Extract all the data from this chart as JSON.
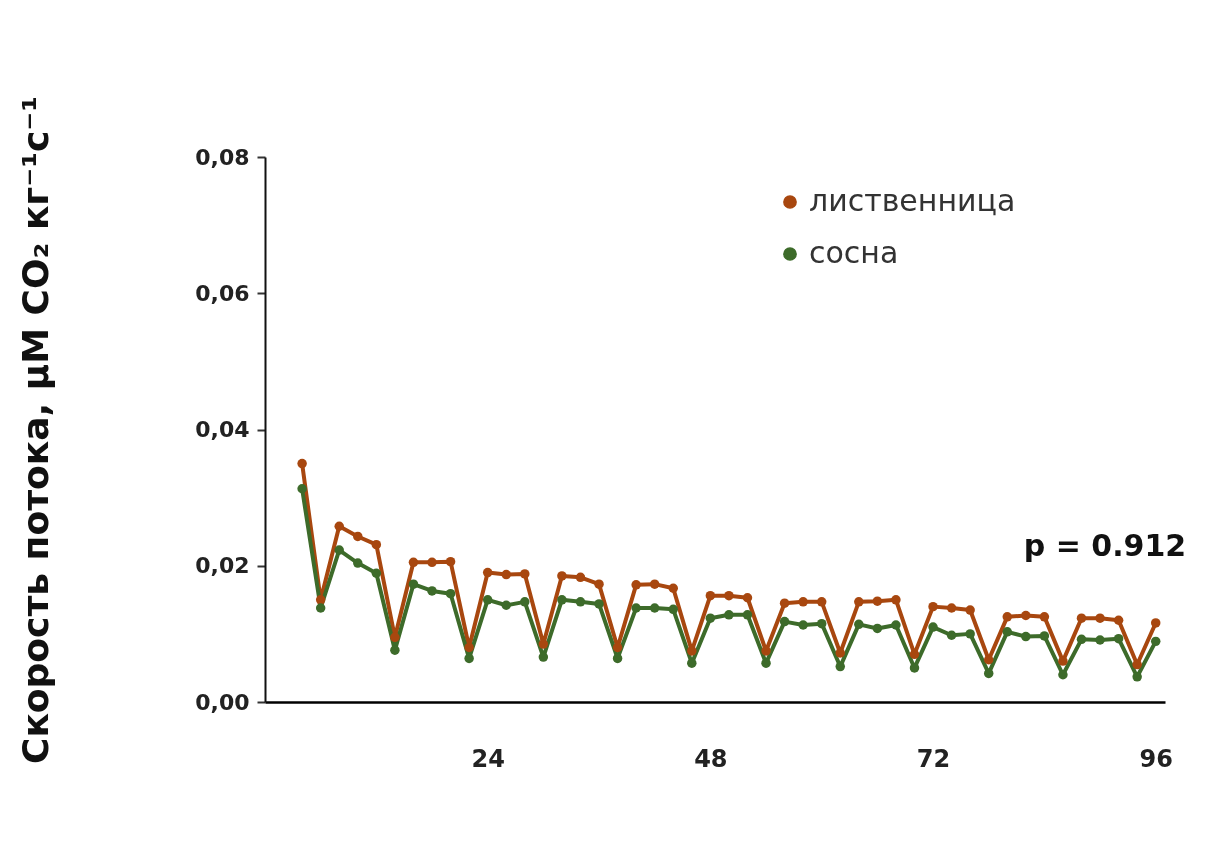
{
  "chart_data": {
    "type": "line",
    "ylabel": "Скорость потока, µM CO₂ кг⁻¹с⁻¹",
    "x": [
      4,
      6,
      8,
      10,
      12,
      14,
      16,
      18,
      20,
      22,
      24,
      26,
      28,
      30,
      32,
      34,
      36,
      38,
      40,
      42,
      44,
      46,
      48,
      50,
      52,
      54,
      56,
      58,
      60,
      62,
      64,
      66,
      68,
      70,
      72,
      74,
      76,
      78,
      80,
      82,
      84,
      86,
      88,
      90,
      92,
      94,
      96
    ],
    "series": [
      {
        "name": "лиственница",
        "color": "#a8470f",
        "values": [
          0.035,
          0.015,
          0.0258,
          0.0243,
          0.0231,
          0.0095,
          0.0205,
          0.0205,
          0.0206,
          0.008,
          0.019,
          0.0187,
          0.0188,
          0.0085,
          0.0185,
          0.0183,
          0.0173,
          0.008,
          0.0172,
          0.0173,
          0.0167,
          0.0075,
          0.0156,
          0.0156,
          0.0153,
          0.0075,
          0.0145,
          0.0147,
          0.0147,
          0.0072,
          0.0147,
          0.0148,
          0.015,
          0.007,
          0.014,
          0.0138,
          0.0135,
          0.0062,
          0.0125,
          0.0127,
          0.0125,
          0.006,
          0.0123,
          0.0123,
          0.012,
          0.0055,
          0.0116
        ]
      },
      {
        "name": "сосна",
        "color": "#3d6b2a",
        "values": [
          0.0313,
          0.0138,
          0.0223,
          0.0204,
          0.0189,
          0.0076,
          0.0173,
          0.0163,
          0.0159,
          0.0064,
          0.015,
          0.0142,
          0.0147,
          0.0066,
          0.015,
          0.0147,
          0.0144,
          0.0064,
          0.0138,
          0.0138,
          0.0136,
          0.0057,
          0.0123,
          0.0128,
          0.0128,
          0.0057,
          0.0118,
          0.0113,
          0.0115,
          0.0052,
          0.0114,
          0.0108,
          0.0113,
          0.005,
          0.011,
          0.0098,
          0.01,
          0.0042,
          0.0103,
          0.0096,
          0.0097,
          0.004,
          0.0092,
          0.0091,
          0.0093,
          0.0037,
          0.0089
        ]
      }
    ],
    "xlim": [
      0,
      97
    ],
    "xticks": [
      24,
      48,
      72,
      96
    ],
    "ylim": [
      0,
      0.08
    ],
    "yticks": [
      {
        "value": 0,
        "label": "0,00"
      },
      {
        "value": 0.02,
        "label": "0,02"
      },
      {
        "value": 0.04,
        "label": "0,04"
      },
      {
        "value": 0.06,
        "label": "0,06"
      },
      {
        "value": 0.08,
        "label": "0,08"
      }
    ],
    "annotations": [
      "p = 0.912"
    ],
    "legend": "top right",
    "grid": false,
    "marker": "circle",
    "line_style": "solid"
  }
}
